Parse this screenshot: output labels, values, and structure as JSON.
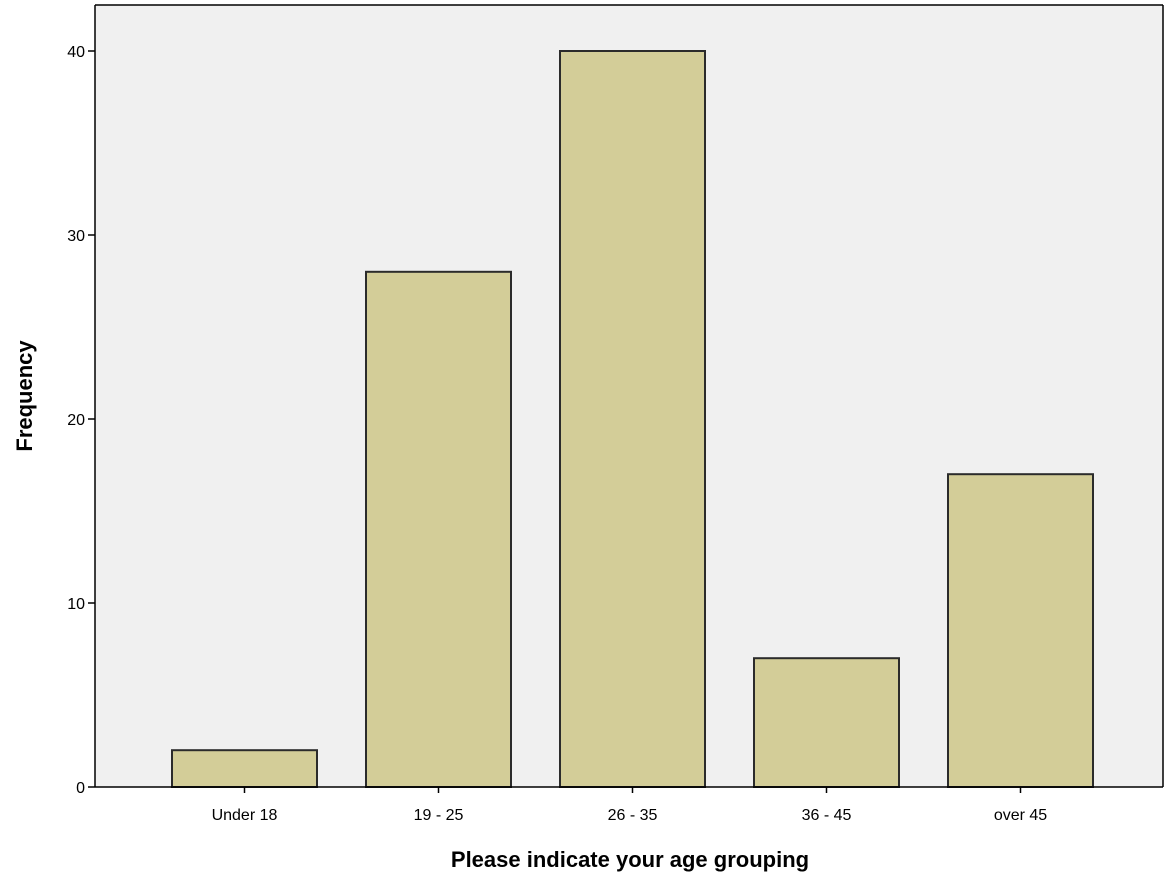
{
  "chart_data": {
    "type": "bar",
    "title": "",
    "xlabel": "Please indicate your age grouping",
    "ylabel": "Frequency",
    "categories": [
      "Under 18",
      "19 - 25",
      "26 - 35",
      "36 - 45",
      "over 45"
    ],
    "values": [
      2,
      28,
      40,
      7,
      17
    ],
    "ylim": [
      0,
      42.5
    ],
    "yticks": [
      0,
      10,
      20,
      30,
      40
    ],
    "grid": false,
    "legend": "none",
    "colors": {
      "bar_fill": "#d3cd98",
      "bar_stroke": "#2b2b2b",
      "plot_background": "#f0f0f0",
      "axis": "#000000"
    }
  }
}
